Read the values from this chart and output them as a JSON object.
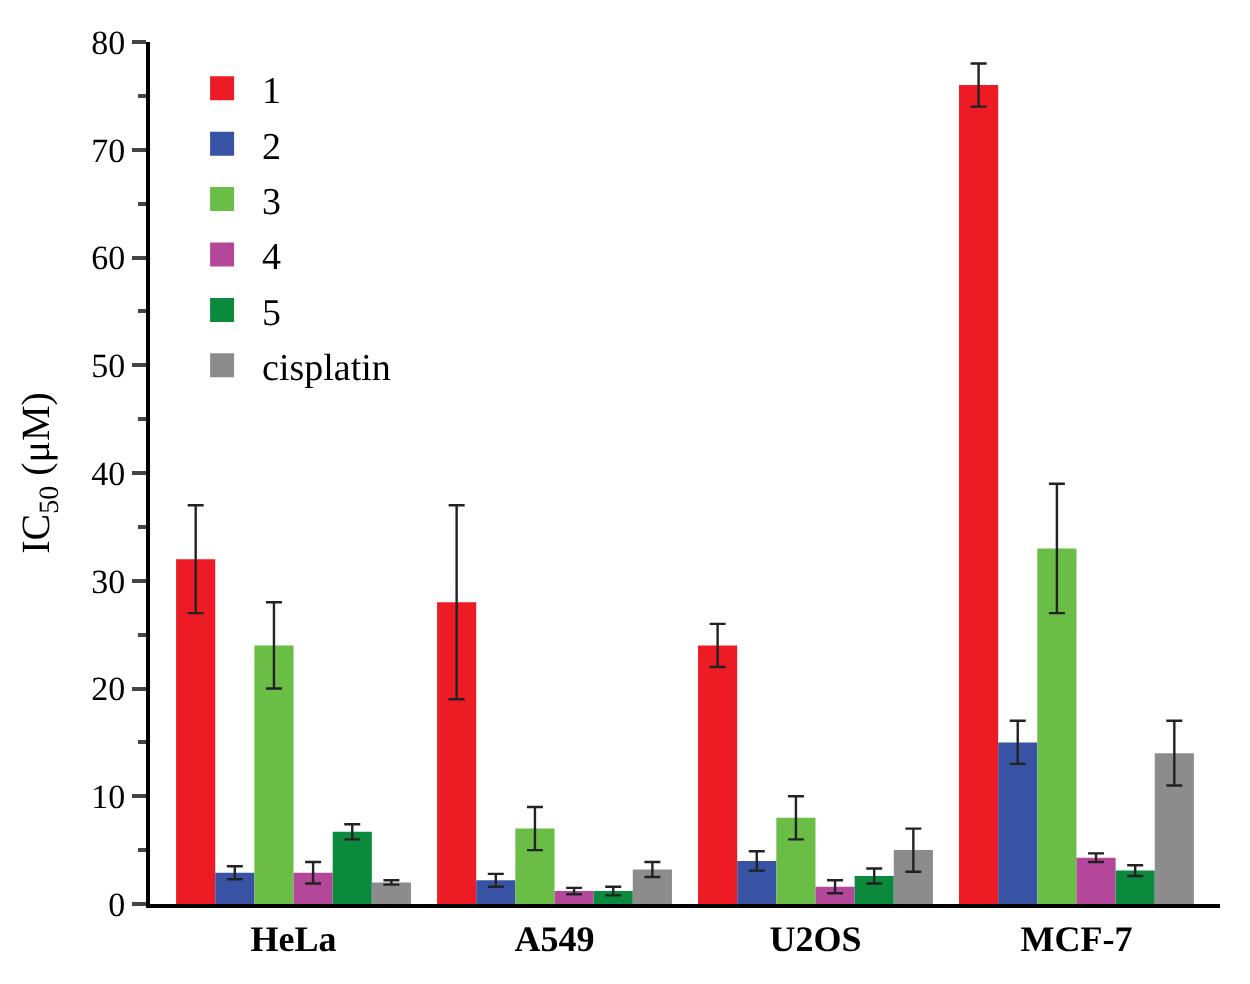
{
  "chart_data": {
    "type": "bar",
    "ylabel": "IC$_{50}$ (μM)",
    "categories": [
      "HeLa",
      "A549",
      "U2OS",
      "MCF-7"
    ],
    "series": [
      {
        "name": "1",
        "color": "#ed1c24",
        "values": [
          32,
          28,
          24,
          76
        ],
        "errors": [
          5,
          9,
          2,
          2
        ]
      },
      {
        "name": "2",
        "color": "#3953a4",
        "values": [
          2.9,
          2.2,
          4,
          15
        ],
        "errors": [
          0.6,
          0.6,
          0.9,
          2
        ]
      },
      {
        "name": "3",
        "color": "#6abd45",
        "values": [
          24,
          7,
          8,
          33
        ],
        "errors": [
          4,
          2,
          2,
          6
        ]
      },
      {
        "name": "4",
        "color": "#b5479b",
        "values": [
          2.9,
          1.2,
          1.6,
          4.3
        ],
        "errors": [
          1,
          0.3,
          0.6,
          0.4
        ]
      },
      {
        "name": "5",
        "color": "#0b8a3e",
        "values": [
          6.7,
          1.2,
          2.6,
          3.1
        ],
        "errors": [
          0.7,
          0.4,
          0.7,
          0.5
        ]
      },
      {
        "name": "cisplatin",
        "color": "#8c8c8c",
        "values": [
          2.0,
          3.2,
          5,
          14
        ],
        "errors": [
          0.2,
          0.7,
          2,
          3
        ]
      }
    ],
    "ylim": [
      0,
      80
    ],
    "yticks": [
      0,
      10,
      20,
      30,
      40,
      50,
      60,
      70,
      80
    ],
    "legend": "top left"
  }
}
